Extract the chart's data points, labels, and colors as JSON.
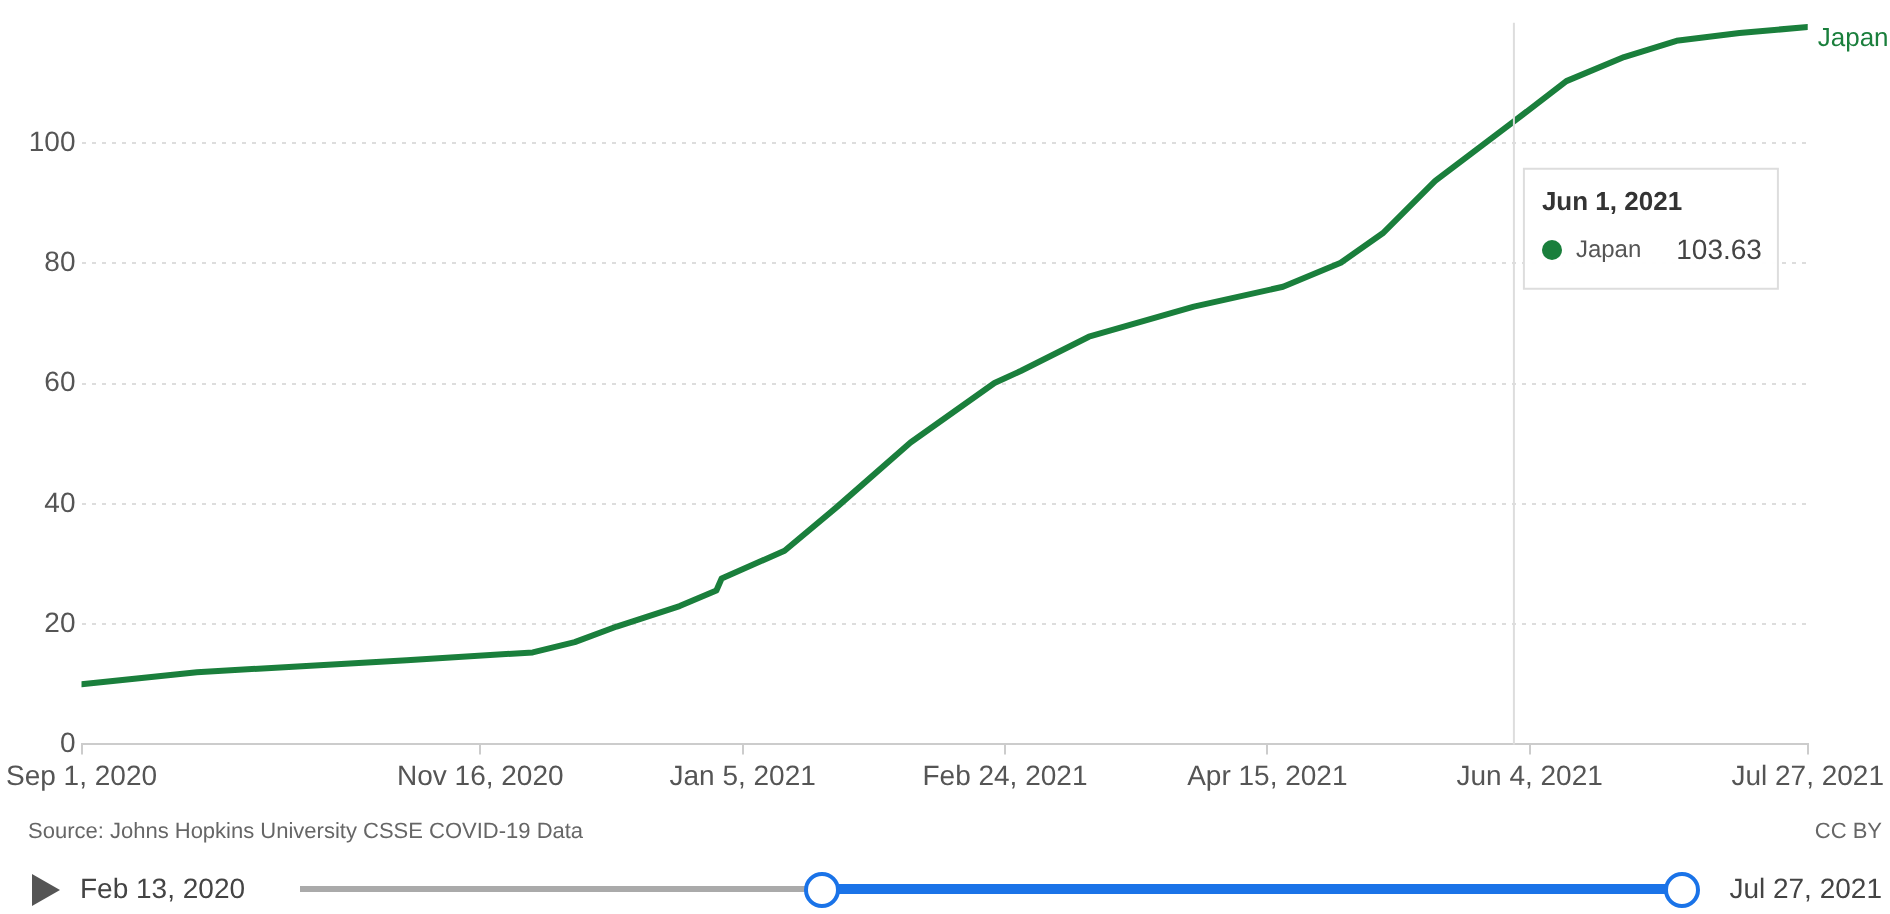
{
  "chart_data": {
    "type": "line",
    "x": [
      "2020-09-01",
      "2020-09-23",
      "2020-10-13",
      "2020-11-02",
      "2020-11-26",
      "2020-12-04",
      "2020-12-12",
      "2020-12-24",
      "2020-12-31",
      "2021-01-01",
      "2021-01-13",
      "2021-01-23",
      "2021-02-06",
      "2021-02-22",
      "2021-02-27",
      "2021-03-12",
      "2021-04-01",
      "2021-04-18",
      "2021-04-29",
      "2021-05-07",
      "2021-05-17",
      "2021-06-01",
      "2021-06-11",
      "2021-06-22",
      "2021-07-02",
      "2021-07-14",
      "2021-07-27"
    ],
    "series": [
      {
        "name": "Japan",
        "color": "#1a7f3c",
        "values": [
          10.0,
          12.0,
          13.0,
          14.0,
          15.3,
          17.0,
          19.6,
          23.0,
          25.6,
          27.6,
          32.2,
          39.5,
          50.2,
          60.1,
          62.1,
          67.8,
          72.8,
          76.1,
          80.1,
          85.0,
          93.7,
          103.6,
          110.3,
          114.3,
          117.0,
          118.3,
          119.3
        ]
      }
    ],
    "xlim": [
      "2020-09-01",
      "2021-07-27"
    ],
    "xticks": [
      {
        "value": "2020-09-01",
        "label": "Sep 1, 2020"
      },
      {
        "value": "2020-11-16",
        "label": "Nov 16, 2020"
      },
      {
        "value": "2021-01-05",
        "label": "Jan 5, 2021"
      },
      {
        "value": "2021-02-24",
        "label": "Feb 24, 2021"
      },
      {
        "value": "2021-04-15",
        "label": "Apr 15, 2021"
      },
      {
        "value": "2021-06-04",
        "label": "Jun 4, 2021"
      },
      {
        "value": "2021-07-27",
        "label": "Jul 27, 2021"
      }
    ],
    "ylim": [
      0,
      120
    ],
    "yticks": [
      0,
      20,
      40,
      60,
      80,
      100
    ],
    "grid": "y",
    "legend": false,
    "marker": "none",
    "line_style": "solid",
    "ref_lines": [
      {
        "axis": "x",
        "value": "2021-06-01",
        "label": null,
        "color": "#dddddd"
      }
    ],
    "annotations": [
      "Jun 1, 2021",
      "Japan",
      "103.63",
      "Source: Johns Hopkins University CSSE COVID-19 Data",
      "CC BY",
      "Feb 13, 2020",
      "Jul 27, 2021"
    ]
  }
}
